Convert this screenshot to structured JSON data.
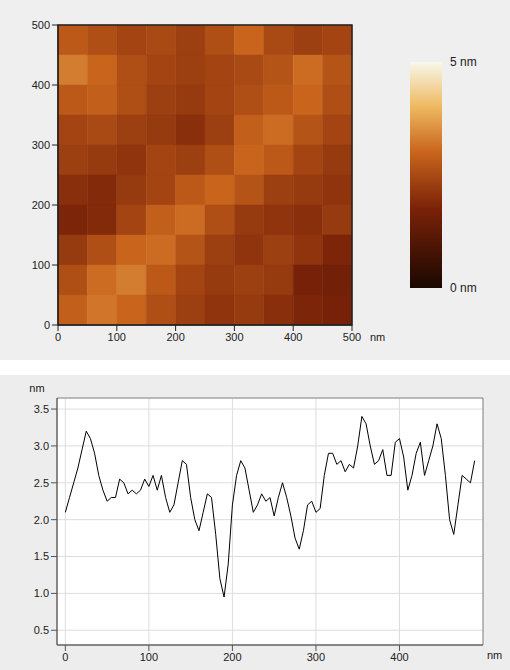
{
  "chart_data": [
    {
      "type": "heatmap",
      "xlim": [
        0,
        500
      ],
      "ylim": [
        0,
        500
      ],
      "xticks": [
        0,
        100,
        200,
        300,
        400,
        500
      ],
      "yticks": [
        0,
        100,
        200,
        300,
        400,
        500
      ],
      "x_label": "nm",
      "cells": [
        [
          2.8,
          2.6,
          2.4,
          2.5,
          2.3,
          2.6,
          3.0,
          2.5,
          2.3,
          2.4
        ],
        [
          3.3,
          3.0,
          2.6,
          2.4,
          2.3,
          2.4,
          2.5,
          2.7,
          3.1,
          2.7
        ],
        [
          2.8,
          2.9,
          2.6,
          2.3,
          2.2,
          2.4,
          2.6,
          2.8,
          3.0,
          2.6
        ],
        [
          2.4,
          2.5,
          2.3,
          2.2,
          2.0,
          2.3,
          2.9,
          3.1,
          2.7,
          2.4
        ],
        [
          2.3,
          2.2,
          2.1,
          2.4,
          2.3,
          2.6,
          3.0,
          2.8,
          2.4,
          2.2
        ],
        [
          2.0,
          1.9,
          2.2,
          2.4,
          2.8,
          3.0,
          2.7,
          2.3,
          2.2,
          2.1
        ],
        [
          1.8,
          1.9,
          2.4,
          2.9,
          3.1,
          2.6,
          2.2,
          2.1,
          2.0,
          2.2
        ],
        [
          2.2,
          2.6,
          3.0,
          3.1,
          2.7,
          2.3,
          2.1,
          2.3,
          2.1,
          1.8
        ],
        [
          2.6,
          3.1,
          3.3,
          2.8,
          2.4,
          2.2,
          2.3,
          2.2,
          1.7,
          1.6
        ],
        [
          2.9,
          3.2,
          3.0,
          2.6,
          2.3,
          2.1,
          2.2,
          2.0,
          1.8,
          1.7
        ]
      ],
      "color_range": [
        0,
        5
      ],
      "color_ticks": [
        {
          "value": 5,
          "label": "5 nm"
        },
        {
          "value": 0,
          "label": "0 nm"
        }
      ]
    },
    {
      "type": "line",
      "xlim": [
        -10,
        500
      ],
      "ylim": [
        0.3,
        3.65
      ],
      "xticks": [
        0,
        100,
        200,
        300,
        400
      ],
      "yticks": [
        0.5,
        {
          "value": 1,
          "label": "1.0"
        },
        1.5,
        {
          "value": 2,
          "label": "2.0"
        },
        2.5,
        {
          "value": 3,
          "label": "3.0"
        },
        3.5
      ],
      "x_label": "nm",
      "y_label": "nm",
      "grid": true,
      "color": "#000000",
      "x": [
        0,
        5,
        10,
        15,
        20,
        25,
        30,
        35,
        40,
        45,
        50,
        55,
        60,
        65,
        70,
        75,
        80,
        85,
        90,
        95,
        100,
        105,
        110,
        115,
        120,
        125,
        130,
        135,
        140,
        145,
        150,
        155,
        160,
        165,
        170,
        175,
        180,
        185,
        190,
        195,
        200,
        205,
        210,
        215,
        220,
        225,
        230,
        235,
        240,
        245,
        250,
        255,
        260,
        265,
        270,
        275,
        280,
        285,
        290,
        295,
        300,
        305,
        310,
        315,
        320,
        325,
        330,
        335,
        340,
        345,
        350,
        355,
        360,
        365,
        370,
        375,
        380,
        385,
        390,
        395,
        400,
        405,
        410,
        415,
        420,
        425,
        430,
        435,
        440,
        445,
        450,
        455,
        460,
        465,
        470,
        475,
        480,
        485,
        490
      ],
      "values": [
        2.1,
        2.3,
        2.5,
        2.7,
        2.95,
        3.2,
        3.1,
        2.9,
        2.6,
        2.4,
        2.25,
        2.3,
        2.3,
        2.55,
        2.5,
        2.35,
        2.4,
        2.35,
        2.4,
        2.55,
        2.45,
        2.6,
        2.4,
        2.6,
        2.3,
        2.1,
        2.2,
        2.5,
        2.8,
        2.75,
        2.3,
        2.0,
        1.85,
        2.1,
        2.35,
        2.3,
        1.8,
        1.2,
        0.95,
        1.4,
        2.2,
        2.6,
        2.8,
        2.7,
        2.4,
        2.1,
        2.2,
        2.35,
        2.25,
        2.3,
        2.05,
        2.3,
        2.5,
        2.3,
        2.05,
        1.75,
        1.6,
        1.85,
        2.2,
        2.25,
        2.1,
        2.15,
        2.6,
        2.9,
        2.9,
        2.75,
        2.8,
        2.65,
        2.75,
        2.7,
        3.0,
        3.4,
        3.3,
        3.0,
        2.75,
        2.8,
        2.95,
        2.6,
        2.6,
        3.05,
        3.1,
        2.85,
        2.4,
        2.6,
        2.9,
        3.05,
        2.6,
        2.8,
        3.0,
        3.3,
        3.1,
        2.6,
        2.0,
        1.8,
        2.2,
        2.6,
        2.55,
        2.5,
        2.8
      ]
    }
  ]
}
